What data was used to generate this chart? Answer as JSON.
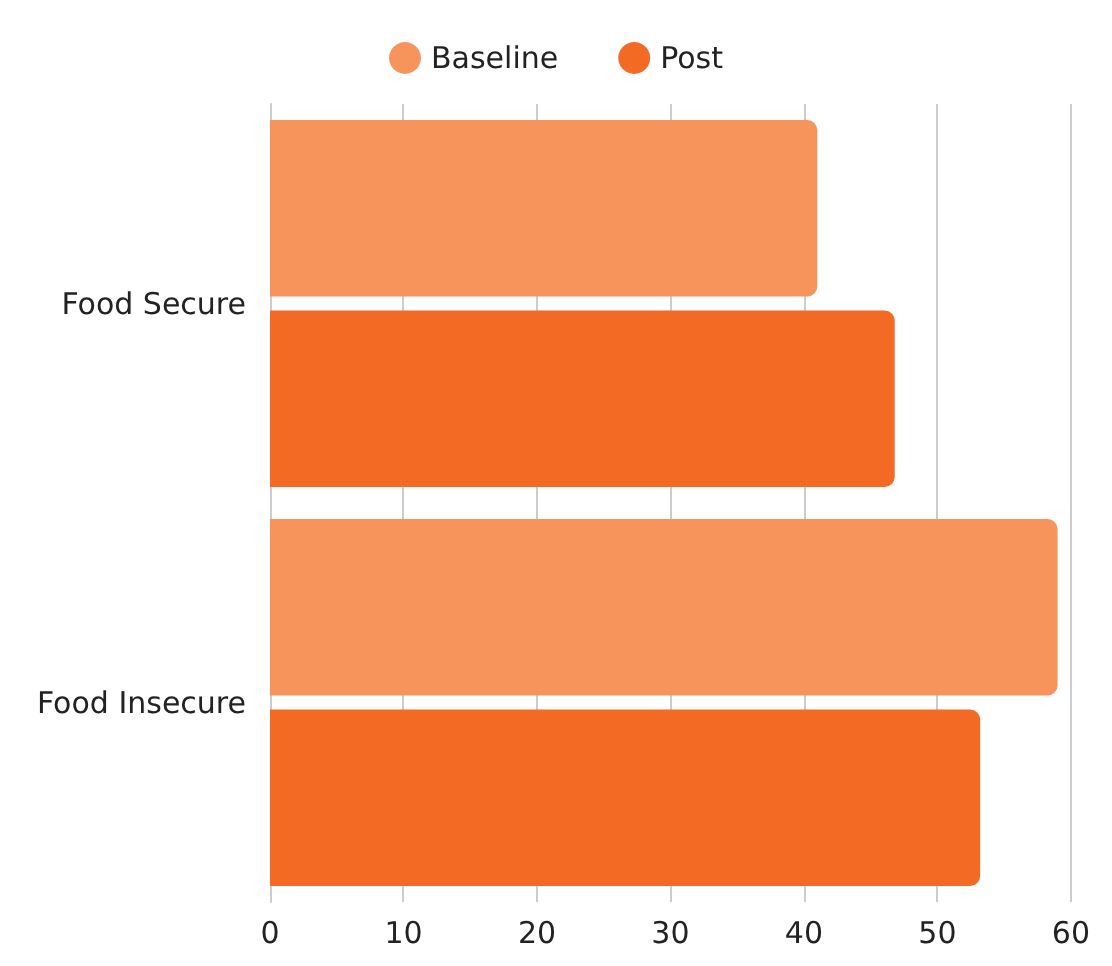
{
  "chart_data": {
    "type": "bar",
    "orientation": "horizontal",
    "categories": [
      "Food Secure",
      "Food Insecure"
    ],
    "series": [
      {
        "name": "Baseline",
        "color": "#f7945c",
        "values": [
          41.0,
          59.0
        ]
      },
      {
        "name": "Post",
        "color": "#f26a24",
        "values": [
          46.8,
          53.2
        ]
      }
    ],
    "xlim": [
      0,
      60
    ],
    "xticks": [
      0,
      10,
      20,
      30,
      40,
      50,
      60
    ],
    "grid": "x",
    "legend": "top"
  }
}
